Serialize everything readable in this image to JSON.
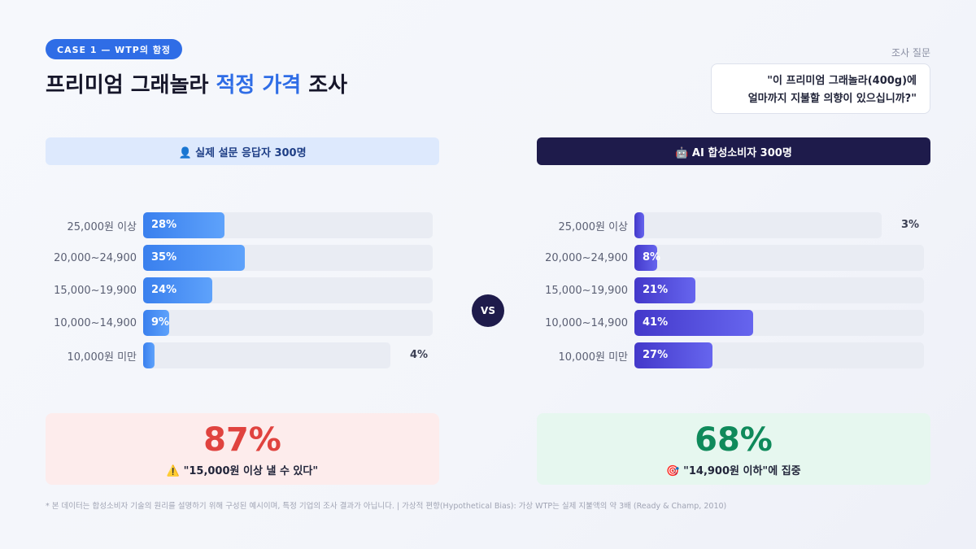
{
  "header": {
    "badge": "CASE 1 — WTP의 함정",
    "title_pre": "프리미엄 그래놀라 ",
    "title_accent": "적정 가격",
    "title_post": " 조사",
    "question_label": "조사 질문",
    "question_line1": "\"이 프리미엄 그래놀라(400g)에",
    "question_line2": "얼마까지 지불할 의향이 있으십니까?\""
  },
  "left_panel": {
    "heading": "👤 실제 설문 응답자 300명",
    "result_value": "87%",
    "result_caption": "⚠️ \"15,000원 이상 낼 수 있다\""
  },
  "right_panel": {
    "heading": "🤖 AI 합성소비자 300명",
    "result_value": "68%",
    "result_caption": "🎯 \"14,900원 이하\"에 집중"
  },
  "vs_label": "VS",
  "footer": "* 본 데이터는 합성소비자 기술의 원리를 설명하기 위해 구성된 예시이며, 특정 기업의 조사 결과가 아닙니다.  |  가상적 편향(Hypothetical Bias): 가상 WTP는 실제 지불액의 약 3배 (Ready & Champ, 2010)",
  "colors": {
    "accent_blue": "#2f6de6",
    "navy": "#1e1b4b",
    "bar_blue": "#3a80ee",
    "bar_purple": "#4338ca",
    "result_red": "#e0433f",
    "result_green": "#0f8a5b"
  },
  "chart_data": [
    {
      "type": "bar",
      "orientation": "horizontal",
      "title": "👤 실제 설문 응답자 300명",
      "categories": [
        "25,000원 이상",
        "20,000~24,900",
        "15,000~19,900",
        "10,000~14,900",
        "10,000원 미만"
      ],
      "values": [
        28,
        35,
        24,
        9,
        4
      ],
      "value_labels": [
        "28%",
        "35%",
        "24%",
        "9%",
        "4%"
      ],
      "xlim": [
        0,
        100
      ],
      "grid": false
    },
    {
      "type": "bar",
      "orientation": "horizontal",
      "title": "🤖 AI 합성소비자 300명",
      "categories": [
        "25,000원 이상",
        "20,000~24,900",
        "15,000~19,900",
        "10,000~14,900",
        "10,000원 미만"
      ],
      "values": [
        3,
        8,
        21,
        41,
        27
      ],
      "value_labels": [
        "3%",
        "8%",
        "21%",
        "41%",
        "27%"
      ],
      "xlim": [
        0,
        100
      ],
      "grid": false
    }
  ]
}
